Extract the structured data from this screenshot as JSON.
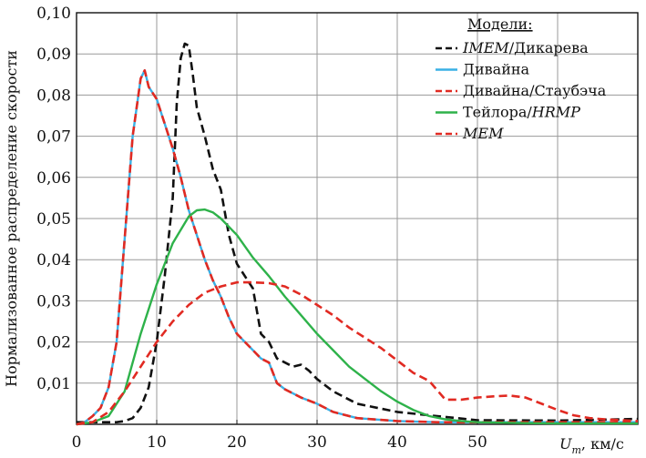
{
  "chart_data": {
    "type": "line",
    "title": "",
    "xlabel_var": "U",
    "xlabel_sub": "m",
    "xlabel_unit": ", км/с",
    "ylabel": "Нормализованное распределение скорости",
    "xlim": [
      0,
      70
    ],
    "ylim": [
      0,
      0.1
    ],
    "x_ticks": [
      "0",
      "10",
      "20",
      "30",
      "40",
      "50"
    ],
    "y_ticks": [
      "0,01",
      "0,02",
      "0,03",
      "0,04",
      "0,05",
      "0,06",
      "0,07",
      "0,08",
      "0,09",
      "0,10"
    ],
    "grid": true,
    "legend_position": "top-right",
    "legend_title": "Модели:",
    "series": [
      {
        "name_italic": "IMEM",
        "name_rest": "/Дикарева",
        "color": "#111111",
        "dash": "dashed",
        "x": [
          0,
          5,
          6,
          7,
          8,
          9,
          10,
          11,
          12,
          12.5,
          13,
          13.5,
          14,
          14.5,
          15,
          16,
          17,
          18,
          19,
          20,
          21,
          22,
          23,
          24,
          25,
          26,
          27,
          28,
          29,
          30,
          32,
          35,
          40,
          45,
          50,
          60,
          70
        ],
        "y": [
          0.0005,
          0.0005,
          0.0008,
          0.0015,
          0.004,
          0.009,
          0.02,
          0.036,
          0.055,
          0.078,
          0.089,
          0.0925,
          0.092,
          0.085,
          0.077,
          0.07,
          0.062,
          0.057,
          0.046,
          0.039,
          0.036,
          0.033,
          0.022,
          0.02,
          0.016,
          0.015,
          0.014,
          0.0145,
          0.013,
          0.011,
          0.008,
          0.005,
          0.003,
          0.002,
          0.001,
          0.0009,
          0.0013
        ]
      },
      {
        "name_italic": "",
        "name_rest": "Дивайна",
        "color": "#39b0e5",
        "dash": "solid",
        "x": [
          0,
          1,
          2,
          3,
          4,
          5,
          6,
          7,
          8,
          8.5,
          9,
          10,
          11,
          12,
          13,
          14,
          15,
          16,
          17,
          18,
          19,
          20,
          21,
          22,
          23,
          24,
          25,
          26,
          28,
          30,
          32,
          35,
          40,
          45,
          50,
          60,
          70
        ],
        "y": [
          0,
          0.0005,
          0.002,
          0.004,
          0.009,
          0.02,
          0.045,
          0.07,
          0.084,
          0.086,
          0.082,
          0.079,
          0.073,
          0.067,
          0.06,
          0.052,
          0.046,
          0.04,
          0.035,
          0.031,
          0.026,
          0.022,
          0.02,
          0.018,
          0.016,
          0.015,
          0.01,
          0.0085,
          0.0065,
          0.005,
          0.003,
          0.0015,
          0.0008,
          0.0005,
          0.0005,
          0.0005,
          0.0005
        ]
      },
      {
        "name_italic": "",
        "name_rest": "Дивайна/Стаубэча",
        "color": "#e12a22",
        "dash": "dashed",
        "x": [
          0,
          1,
          2,
          3,
          4,
          5,
          6,
          7,
          8,
          8.5,
          9,
          10,
          11,
          12,
          13,
          14,
          15,
          16,
          17,
          18,
          19,
          20,
          21,
          22,
          23,
          24,
          25,
          26,
          28,
          30,
          32,
          35,
          40,
          45,
          50,
          60,
          70
        ],
        "y": [
          0,
          0.0005,
          0.002,
          0.004,
          0.009,
          0.02,
          0.045,
          0.07,
          0.084,
          0.086,
          0.082,
          0.079,
          0.073,
          0.067,
          0.06,
          0.052,
          0.046,
          0.04,
          0.035,
          0.031,
          0.026,
          0.022,
          0.02,
          0.018,
          0.016,
          0.015,
          0.01,
          0.0085,
          0.0065,
          0.005,
          0.003,
          0.0015,
          0.0008,
          0.0005,
          0.0005,
          0.0005,
          0.0005
        ]
      },
      {
        "name_italic": "HRMP",
        "name_rest": "Тейлора/",
        "italic_last": true,
        "color": "#2eb24a",
        "dash": "solid",
        "x": [
          0,
          2,
          4,
          6,
          8,
          10,
          12,
          14,
          15,
          16,
          17,
          18,
          20,
          22,
          24,
          26,
          28,
          30,
          32,
          34,
          36,
          38,
          40,
          42,
          44,
          46,
          48,
          50,
          55,
          60,
          65,
          70
        ],
        "y": [
          0,
          0.0005,
          0.002,
          0.008,
          0.022,
          0.034,
          0.044,
          0.0505,
          0.052,
          0.0522,
          0.0515,
          0.05,
          0.046,
          0.0405,
          0.036,
          0.031,
          0.0265,
          0.022,
          0.018,
          0.014,
          0.011,
          0.008,
          0.0055,
          0.0035,
          0.002,
          0.0012,
          0.0008,
          0.0005,
          0.0003,
          0.0002,
          0.0002,
          0.0002
        ]
      },
      {
        "name_italic": "MEM",
        "name_rest": "",
        "color": "#e12a22",
        "dash": "dashed",
        "x": [
          0,
          2,
          4,
          6,
          8,
          10,
          12,
          14,
          16,
          18,
          20,
          22,
          24,
          26,
          28,
          30,
          32,
          34,
          36,
          38,
          40,
          42,
          44,
          46,
          48,
          50,
          52,
          54,
          56,
          58,
          60,
          62,
          64,
          66,
          68,
          70
        ],
        "y": [
          0,
          0.0005,
          0.003,
          0.008,
          0.014,
          0.02,
          0.025,
          0.029,
          0.032,
          0.0335,
          0.0345,
          0.0345,
          0.0343,
          0.0335,
          0.0315,
          0.029,
          0.0265,
          0.0235,
          0.021,
          0.0185,
          0.0155,
          0.0125,
          0.0105,
          0.006,
          0.006,
          0.0065,
          0.0068,
          0.007,
          0.0065,
          0.005,
          0.0035,
          0.0022,
          0.0015,
          0.0012,
          0.001,
          0.0008
        ]
      }
    ]
  }
}
